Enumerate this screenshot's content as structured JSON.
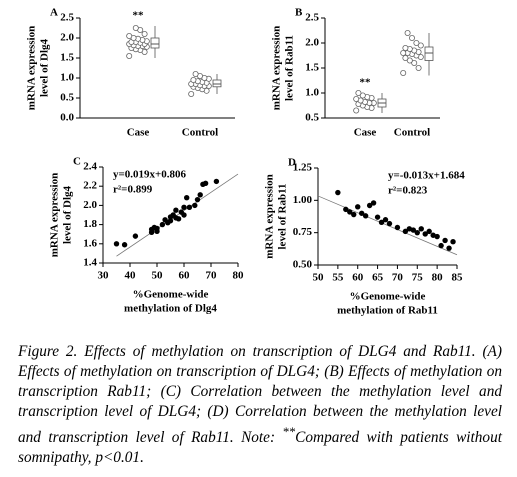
{
  "chart_data": [
    {
      "type": "strip",
      "label": "A",
      "ylabel": [
        "mRNA expression",
        "level of Dlg4"
      ],
      "categories": [
        "Case",
        "Control"
      ],
      "series": [
        {
          "name": "Case",
          "color": "#666666",
          "values": [
            1.55,
            1.65,
            1.7,
            1.72,
            1.75,
            1.78,
            1.8,
            1.8,
            1.82,
            1.85,
            1.85,
            1.88,
            1.9,
            1.9,
            1.92,
            1.95,
            1.98,
            2.0,
            2.05,
            2.1,
            2.2,
            2.25
          ],
          "box": {
            "min": 1.5,
            "q1": 1.75,
            "median": 1.85,
            "q3": 2.0,
            "max": 2.3
          }
        },
        {
          "name": "Control",
          "color": "#666666",
          "values": [
            0.6,
            0.68,
            0.72,
            0.75,
            0.78,
            0.8,
            0.8,
            0.82,
            0.85,
            0.85,
            0.88,
            0.9,
            0.92,
            0.95,
            0.98,
            1.0,
            1.05,
            1.1
          ],
          "box": {
            "min": 0.6,
            "q1": 0.78,
            "median": 0.85,
            "q3": 0.95,
            "max": 1.1
          }
        }
      ],
      "significance": "**",
      "significant_group": "Case",
      "ylim": [
        0,
        2.5
      ],
      "yticks": [
        {
          "value": 0,
          "label": "0.0"
        },
        0.5,
        {
          "value": 1,
          "label": "1.0"
        },
        1.5,
        {
          "value": 2,
          "label": "2.0"
        },
        2.5
      ]
    },
    {
      "type": "strip",
      "label": "B",
      "ylabel": [
        "mRNA expression",
        "level of Rab11"
      ],
      "categories": [
        "Case",
        "Control"
      ],
      "series": [
        {
          "name": "Case",
          "color": "#666666",
          "values": [
            0.65,
            0.7,
            0.72,
            0.75,
            0.78,
            0.8,
            0.8,
            0.82,
            0.85,
            0.88,
            0.9,
            0.92,
            0.95,
            1.0
          ],
          "box": {
            "min": 0.6,
            "q1": 0.72,
            "median": 0.8,
            "q3": 0.88,
            "max": 1.0
          }
        },
        {
          "name": "Control",
          "color": "#666666",
          "values": [
            1.4,
            1.5,
            1.6,
            1.65,
            1.7,
            1.72,
            1.75,
            1.78,
            1.8,
            1.8,
            1.82,
            1.85,
            1.88,
            1.9,
            1.95,
            2.0,
            2.1,
            2.2
          ],
          "box": {
            "min": 1.35,
            "q1": 1.65,
            "median": 1.8,
            "q3": 1.92,
            "max": 2.2
          }
        }
      ],
      "significance": "**",
      "significant_group": "Case",
      "ylim": [
        0.5,
        2.5
      ],
      "yticks": [
        0.5,
        {
          "value": 1,
          "label": "1.0"
        },
        1.5,
        {
          "value": 2,
          "label": "2.0"
        },
        2.5
      ]
    },
    {
      "type": "scatter",
      "label": "C",
      "ylabel": [
        "mRNA expression",
        "level of Dlg4"
      ],
      "xlabel": [
        "%Genome-wide",
        "methylation of Dlg4"
      ],
      "annotations": [
        "y=0.019x+0.806",
        "r²=0.899"
      ],
      "fit": {
        "slope": 0.019,
        "intercept": 0.806
      },
      "color": "#000000",
      "x": [
        35,
        38,
        42,
        48,
        48,
        49,
        50,
        50,
        52,
        53,
        54,
        55,
        55,
        56,
        57,
        57,
        58,
        59,
        60,
        60,
        61,
        62,
        64,
        65,
        66,
        67,
        68,
        72
      ],
      "values": [
        1.6,
        1.59,
        1.68,
        1.72,
        1.75,
        1.77,
        1.73,
        1.76,
        1.8,
        1.85,
        1.82,
        1.88,
        1.84,
        1.9,
        1.95,
        1.87,
        1.86,
        1.93,
        1.98,
        1.9,
        2.08,
        1.98,
        2.0,
        2.06,
        2.11,
        2.22,
        2.23,
        2.25
      ],
      "xlim": [
        30,
        80
      ],
      "xticks": [
        30,
        40,
        50,
        60,
        70,
        80
      ],
      "ylim": [
        1.4,
        2.4
      ],
      "yticks": [
        1.4,
        1.6,
        1.8,
        {
          "value": 2,
          "label": "2.0"
        },
        2.2,
        2.4
      ]
    },
    {
      "type": "scatter",
      "label": "D",
      "ylabel": [
        "mRNA expression",
        "level of Rab11"
      ],
      "xlabel": [
        "%Genome-wide",
        "methylation of Rab11"
      ],
      "annotations": [
        "y=-0.013x+1.684",
        "r²=0.823"
      ],
      "fit": {
        "slope": -0.013,
        "intercept": 1.684
      },
      "color": "#000000",
      "x": [
        55,
        57,
        58,
        59,
        60,
        61,
        62,
        63,
        64,
        65,
        66,
        67,
        68,
        70,
        72,
        73,
        74,
        75,
        76,
        77,
        78,
        79,
        80,
        81,
        82,
        83,
        84
      ],
      "values": [
        1.06,
        0.93,
        0.91,
        0.89,
        0.95,
        0.9,
        0.88,
        0.96,
        0.98,
        0.87,
        0.83,
        0.85,
        0.82,
        0.79,
        0.76,
        0.78,
        0.77,
        0.75,
        0.78,
        0.74,
        0.76,
        0.73,
        0.72,
        0.65,
        0.69,
        0.63,
        0.68
      ],
      "xlim": [
        50,
        85
      ],
      "xticks": [
        50,
        55,
        60,
        65,
        70,
        75,
        80,
        85
      ],
      "ylim": [
        0.5,
        1.25
      ],
      "yticks": [
        {
          "value": 0.5,
          "label": "0.50"
        },
        {
          "value": 0.75,
          "label": "0.75"
        },
        {
          "value": 1,
          "label": "1.00"
        },
        {
          "value": 1.25,
          "label": "1.25"
        }
      ]
    }
  ],
  "caption": {
    "label": "Figure 2.",
    "text": " Effects of methylation on transcription of DLG4 and Rab11. (A) Effects of methylation on transcription of DLG4; (B) Effects of methylation on transcription Rab11; (C) Correlation between the methylation level and transcription level of DLG4; (D) Correlation between the methylation level and transcription level of Rab11. Note: ",
    "mark": "**",
    "note": "Compared with patients without somnipathy, p<0.01."
  }
}
